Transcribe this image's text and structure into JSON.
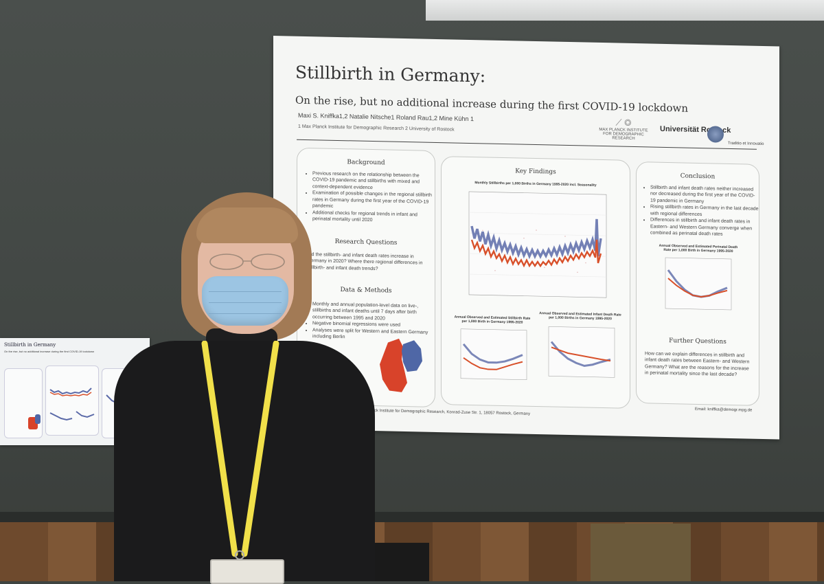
{
  "poster": {
    "title": "Stillbirth in Germany:",
    "subtitle": "On the rise, but no additional increase during the first COVID-19 lockdown",
    "authors": "Maxi S. Kniffka1,2   Natalie Nitsche1   Roland Rau1,2   Mine Kühn 1",
    "affiliations": "1 Max Planck Institute for Demographic Research        2 University of Rostock",
    "logo_mpi": "MAX PLANCK INSTITUTE FOR DEMOGRAPHIC RESEARCH",
    "logo_uni": "Universität Rostock",
    "logo_motto": "Traditio et Innovatio",
    "background": {
      "heading": "Background",
      "items": [
        "Previous research on the relationship between the COVID-19 pandemic and stillbirths with mixed and context-dependent evidence",
        "Examination of possible changes in the regional stillbirth rates in Germany during the first year of the COVID-19 pandemic",
        "Additional checks for regional trends in infant and perinatal mortality until 2020"
      ]
    },
    "research_questions": {
      "heading": "Research Questions",
      "text": "Did the stillbirth- and infant death rates increase in Germany in 2020? Where there regional differences in stillbirth- and infant death trends?"
    },
    "data_methods": {
      "heading": "Data & Methods",
      "items": [
        "Monthly and annual population-level data on live-, stillbirths and infant deaths until 7 days after birth occurring between 1995 and 2020",
        "Negative binomial regressions were used",
        "Analyses were split for Western and Eastern Germany including Berlin"
      ]
    },
    "key_findings": {
      "heading": "Key Findings",
      "chart_main_title": "Monthly Stillbirths per 1,000 Births in Germany 1995-2020 incl. Seasonality",
      "chart_left_title": "Annual Observed and Estimated Stillbirth Rate per 1,000 Birth in Germany 1995-2020",
      "chart_right_title": "Annual Observed and Estimated Infant Death Rate per 1,000 Births in Germany 1995-2020"
    },
    "conclusion": {
      "heading": "Conclusion",
      "items": [
        "Stillbirth and infant death rates neither increased nor decreased during the first year of the COVID-19 pandemic in Germany",
        "Rising stillbirth rates in Germany in the last decade with regional differences",
        "Differences in stillbirth and infant death rates in Eastern- and Western Germany converge when combined as perinatal death rates"
      ],
      "chart_title": "Annual Observed and Estimated Perinatal Death Rate per 1,000 Birth in Germany 1995-2020"
    },
    "further_questions": {
      "heading": "Further Questions",
      "text": "How can we explain differences in stillbirth and infant death rates between Eastern- and Western Germany? What are the reasons for the increase in perinatal mortality since the last decade?"
    },
    "email": "Email: kniffka@demogr.mpg.de",
    "footer": "Max Planck Institute for Demographic Research, Konrad-Zuse Str. 1, 18057 Rostock, Germany"
  },
  "small_poster": {
    "title": "Stillbirth in Germany",
    "subtitle": "On the rise, but no additional increase during the first COVID-19 lockdown"
  },
  "colors": {
    "west_series": "#d8502a",
    "east_series": "#5b6aa8",
    "map_west": "#d8432a",
    "map_east": "#4f67a6",
    "lanyard": "#f1e04a"
  }
}
